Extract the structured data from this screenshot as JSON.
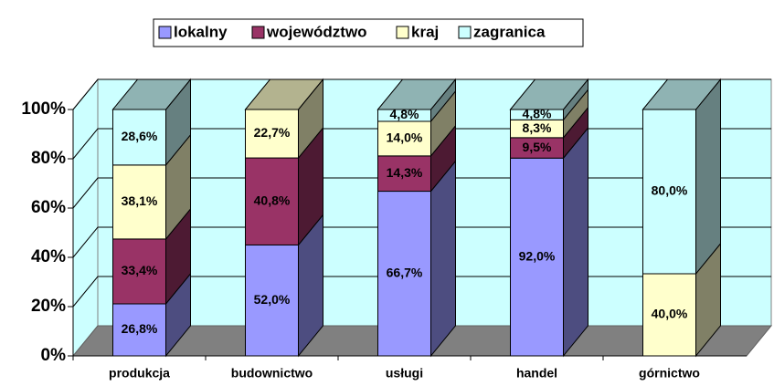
{
  "chart_data": {
    "type": "bar",
    "stacking": "percent",
    "categories": [
      "produkcja",
      "budownictwo",
      "usługi",
      "handel",
      "górnictwo"
    ],
    "series": [
      {
        "name": "lokalny",
        "color": "#9999ff",
        "values": [
          26.8,
          52.0,
          66.7,
          92.0,
          null
        ],
        "value_labels": [
          "26,8%",
          "52,0%",
          "66,7%",
          "92,0%",
          null
        ]
      },
      {
        "name": "województwo",
        "color": "#993366",
        "values": [
          33.4,
          40.8,
          14.3,
          9.5,
          null
        ],
        "value_labels": [
          "33,4%",
          "40,8%",
          "14,3%",
          "9,5%",
          null
        ]
      },
      {
        "name": "kraj",
        "color": "#ffffcc",
        "values": [
          38.1,
          22.7,
          14.0,
          8.3,
          40.0
        ],
        "value_labels": [
          "38,1%",
          "22,7%",
          "14,0%",
          "8,3%",
          "40,0%"
        ]
      },
      {
        "name": "zagranica",
        "color": "#ccffff",
        "values": [
          28.6,
          null,
          4.8,
          4.8,
          80.0
        ],
        "value_labels": [
          "28,6%",
          null,
          "4,8%",
          "4,8%",
          "80,0%"
        ]
      }
    ],
    "ylim": [
      0,
      100
    ],
    "yticks": [
      {
        "value": 0,
        "label": "0%"
      },
      {
        "value": 20,
        "label": "20%"
      },
      {
        "value": 40,
        "label": "40%"
      },
      {
        "value": 60,
        "label": "60%"
      },
      {
        "value": 80,
        "label": "80%"
      },
      {
        "value": 100,
        "label": "100%"
      }
    ],
    "grid": true,
    "legend": "top"
  }
}
